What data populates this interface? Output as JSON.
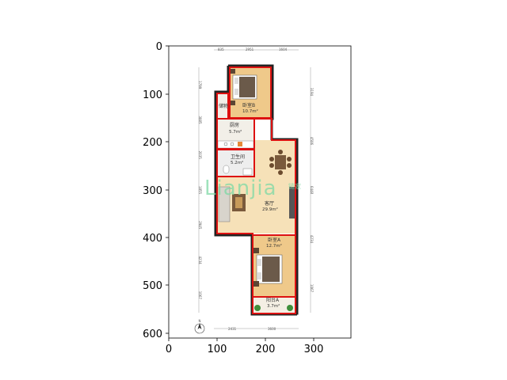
{
  "axes": {
    "x_ticks": [
      "0",
      "100",
      "200",
      "300"
    ],
    "y_ticks": [
      "0",
      "100",
      "200",
      "300",
      "400",
      "500",
      "600"
    ]
  },
  "rooms": {
    "bedroom_b": {
      "name": "卧室B",
      "area": "10.7m²"
    },
    "kitchen": {
      "name": "厨房",
      "area": "5.7m²"
    },
    "bathroom": {
      "name": "卫生间",
      "area": "5.2m²"
    },
    "living": {
      "name": "客厅",
      "area": "29.9m²"
    },
    "bedroom_a": {
      "name": "卧室A",
      "area": "12.7m²"
    },
    "balcony": {
      "name": "阳台A",
      "area": "3.7m²"
    },
    "storage": {
      "name": "储物"
    }
  },
  "dimensions": {
    "top": [
      "835",
      "2951",
      "1604"
    ],
    "bottom": [
      "2431",
      "3600"
    ],
    "left": [
      "1799",
      "3085",
      "2035",
      "1855",
      "2945",
      "4234",
      "1067"
    ],
    "right": [
      "3194",
      "4506",
      "6448",
      "4234",
      "1067"
    ]
  },
  "watermark": {
    "brand": "Lianjia",
    "sub": "链家"
  },
  "compass": {
    "label": "N"
  },
  "colors": {
    "wall": "#222222",
    "highlight": "#dd1111",
    "floor_wood": "#efc98a",
    "floor_tile": "#f2efe8"
  }
}
